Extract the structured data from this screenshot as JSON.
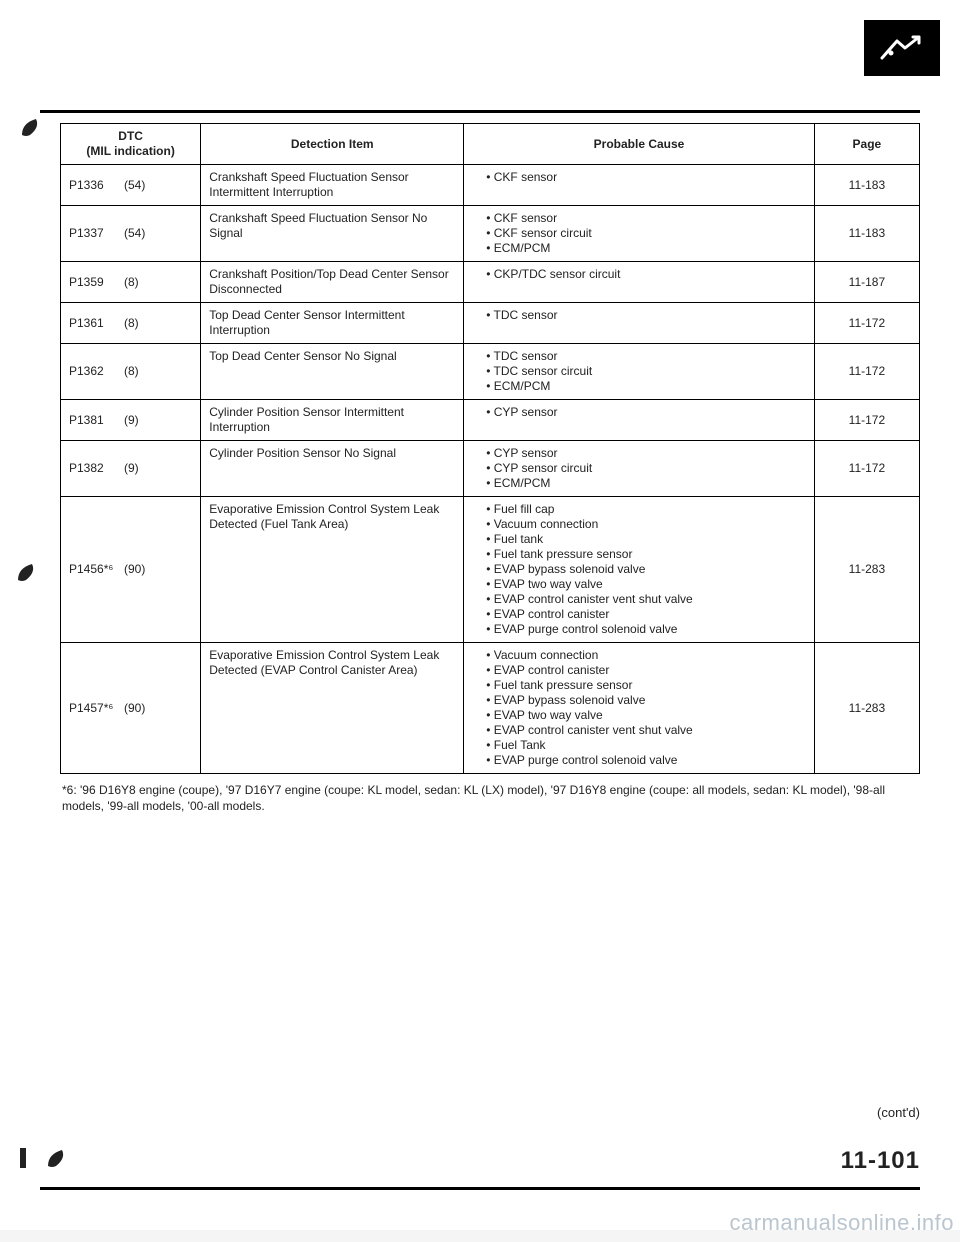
{
  "header": {
    "dtc_label": "DTC",
    "mil_label": "(MIL indication)",
    "detection_label": "Detection Item",
    "cause_label": "Probable Cause",
    "page_label": "Page"
  },
  "rows": [
    {
      "code": "P1336",
      "mil": "(54)",
      "detection": "Crankshaft Speed Fluctuation Sensor Intermittent Interruption",
      "causes": [
        "CKF sensor"
      ],
      "page": "11-183"
    },
    {
      "code": "P1337",
      "mil": "(54)",
      "detection": "Crankshaft Speed Fluctuation Sensor No Signal",
      "causes": [
        "CKF sensor",
        "CKF sensor circuit",
        "ECM/PCM"
      ],
      "page": "11-183"
    },
    {
      "code": "P1359",
      "mil": "(8)",
      "detection": "Crankshaft Position/Top Dead Center Sensor Disconnected",
      "causes": [
        "CKP/TDC sensor circuit"
      ],
      "page": "11-187"
    },
    {
      "code": "P1361",
      "mil": "(8)",
      "detection": "Top Dead Center Sensor Intermittent Interruption",
      "causes": [
        "TDC sensor"
      ],
      "page": "11-172"
    },
    {
      "code": "P1362",
      "mil": "(8)",
      "detection": "Top Dead Center Sensor No Signal",
      "causes": [
        "TDC sensor",
        "TDC sensor circuit",
        "ECM/PCM"
      ],
      "page": "11-172"
    },
    {
      "code": "P1381",
      "mil": "(9)",
      "detection": "Cylinder Position Sensor Intermittent Interruption",
      "causes": [
        "CYP sensor"
      ],
      "page": "11-172"
    },
    {
      "code": "P1382",
      "mil": "(9)",
      "detection": "Cylinder Position Sensor No Signal",
      "causes": [
        "CYP sensor",
        "CYP sensor circuit",
        "ECM/PCM"
      ],
      "page": "11-172"
    },
    {
      "code": "P1456*⁶",
      "mil": "(90)",
      "detection": "Evaporative Emission Control System Leak Detected (Fuel Tank Area)",
      "causes": [
        "Fuel fill cap",
        "Vacuum connection",
        "Fuel tank",
        "Fuel tank pressure sensor",
        "EVAP bypass solenoid valve",
        "EVAP two way valve",
        "EVAP control canister vent shut valve",
        "EVAP control canister",
        "EVAP purge control solenoid valve"
      ],
      "page": "11-283"
    },
    {
      "code": "P1457*⁶",
      "mil": "(90)",
      "detection": "Evaporative Emission Control System Leak Detected (EVAP Control Canister Area)",
      "causes": [
        "Vacuum connection",
        "EVAP control canister",
        "Fuel tank pressure sensor",
        "EVAP bypass solenoid valve",
        "EVAP two way valve",
        "EVAP control canister vent shut valve",
        "Fuel Tank",
        "EVAP purge control solenoid valve"
      ],
      "page": "11-283"
    }
  ],
  "footnote": "*6: '96 D16Y8 engine (coupe), '97 D16Y7 engine (coupe: KL model, sedan: KL (LX) model), '97 D16Y8 engine (coupe: all models, sedan: KL model), '98-all models, '99-all models, '00-all models.",
  "contd": "(cont'd)",
  "page_number": "11-101",
  "watermark": "carmanualsonline.info"
}
